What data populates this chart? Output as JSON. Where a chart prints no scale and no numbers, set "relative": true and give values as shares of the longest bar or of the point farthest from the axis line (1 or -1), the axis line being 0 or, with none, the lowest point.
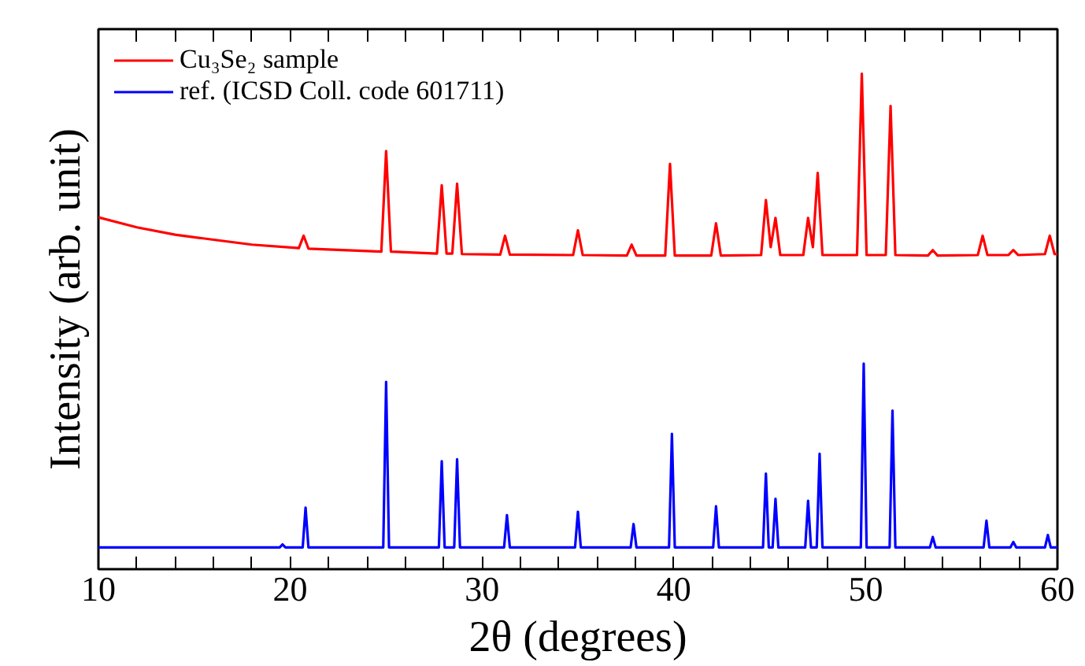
{
  "chart_data": {
    "type": "line",
    "relative": true,
    "xlabel": "2θ (degrees)",
    "ylabel": "Intensity (arb. unit)",
    "xlim": [
      10,
      60
    ],
    "xticks": [
      10,
      {
        "value": 12,
        "label": null
      },
      {
        "value": 14,
        "label": null
      },
      {
        "value": 16,
        "label": null
      },
      {
        "value": 18,
        "label": null
      },
      20,
      {
        "value": 22,
        "label": null
      },
      {
        "value": 24,
        "label": null
      },
      {
        "value": 26,
        "label": null
      },
      {
        "value": 28,
        "label": null
      },
      30,
      {
        "value": 32,
        "label": null
      },
      {
        "value": 34,
        "label": null
      },
      {
        "value": 36,
        "label": null
      },
      {
        "value": 38,
        "label": null
      },
      40,
      {
        "value": 42,
        "label": null
      },
      {
        "value": 44,
        "label": null
      },
      {
        "value": 46,
        "label": null
      },
      {
        "value": 48,
        "label": null
      },
      50,
      {
        "value": 52,
        "label": null
      },
      {
        "value": 54,
        "label": null
      },
      {
        "value": 56,
        "label": null
      },
      {
        "value": 58,
        "label": null
      },
      60
    ],
    "tick_labels": "x",
    "grid": false,
    "legend": "top left",
    "line_style": "solid",
    "series": [
      {
        "name": "Cu₃Se₂ sample",
        "color": "#ff0000",
        "x": [
          10,
          12,
          14,
          16,
          18,
          20.45,
          20.7,
          20.95,
          24.75,
          25.0,
          25.25,
          27.65,
          27.9,
          28.15,
          28.45,
          28.7,
          28.95,
          30.95,
          31.2,
          31.45,
          34.75,
          35.0,
          35.25,
          37.55,
          37.8,
          38.05,
          39.55,
          39.8,
          40.05,
          41.95,
          42.2,
          42.45,
          44.55,
          44.8,
          45.05,
          45.3,
          45.55,
          46.75,
          47.0,
          47.25,
          47.5,
          47.75,
          49.55,
          49.8,
          50.05,
          51.05,
          51.3,
          51.55,
          53.25,
          53.5,
          53.75,
          55.85,
          56.1,
          56.35,
          57.45,
          57.7,
          57.95,
          59.35,
          59.6,
          59.85,
          60
        ],
        "values": [
          0.71,
          0.69,
          0.675,
          0.665,
          0.655,
          0.648,
          0.673,
          0.647,
          0.641,
          0.844,
          0.641,
          0.637,
          0.775,
          0.637,
          0.637,
          0.778,
          0.636,
          0.635,
          0.673,
          0.635,
          0.634,
          0.684,
          0.634,
          0.633,
          0.655,
          0.633,
          0.633,
          0.818,
          0.633,
          0.633,
          0.698,
          0.633,
          0.634,
          0.745,
          0.65,
          0.709,
          0.634,
          0.634,
          0.709,
          0.65,
          0.8,
          0.634,
          0.634,
          1.0,
          0.634,
          0.634,
          0.935,
          0.634,
          0.633,
          0.644,
          0.633,
          0.634,
          0.673,
          0.634,
          0.634,
          0.644,
          0.634,
          0.636,
          0.673,
          0.636,
          0.636
        ]
      },
      {
        "name": "ref. (ICSD Coll. code 601711)",
        "color": "#0000ff",
        "x": [
          10,
          19.45,
          19.6,
          19.75,
          20.65,
          20.8,
          20.95,
          24.85,
          25.0,
          25.15,
          27.75,
          27.9,
          28.05,
          28.55,
          28.7,
          28.85,
          31.15,
          31.3,
          31.45,
          34.85,
          35.0,
          35.15,
          37.75,
          37.9,
          38.05,
          39.75,
          39.9,
          40.05,
          42.05,
          42.2,
          42.35,
          44.65,
          44.8,
          44.95,
          45.15,
          45.3,
          45.45,
          46.85,
          47.0,
          47.15,
          47.45,
          47.6,
          47.75,
          49.75,
          49.9,
          50.05,
          51.25,
          51.4,
          51.55,
          53.35,
          53.5,
          53.65,
          56.15,
          56.3,
          56.45,
          57.55,
          57.7,
          57.85,
          59.35,
          59.5,
          59.65,
          60
        ],
        "values": [
          0.044,
          0.044,
          0.05,
          0.044,
          0.044,
          0.124,
          0.044,
          0.044,
          0.378,
          0.044,
          0.044,
          0.218,
          0.044,
          0.044,
          0.222,
          0.044,
          0.044,
          0.109,
          0.044,
          0.044,
          0.116,
          0.044,
          0.044,
          0.091,
          0.044,
          0.044,
          0.273,
          0.044,
          0.044,
          0.127,
          0.044,
          0.044,
          0.193,
          0.044,
          0.044,
          0.142,
          0.044,
          0.044,
          0.138,
          0.044,
          0.044,
          0.233,
          0.044,
          0.044,
          0.415,
          0.044,
          0.044,
          0.32,
          0.044,
          0.044,
          0.065,
          0.044,
          0.044,
          0.098,
          0.044,
          0.044,
          0.055,
          0.044,
          0.044,
          0.069,
          0.044,
          0.044
        ]
      }
    ]
  }
}
